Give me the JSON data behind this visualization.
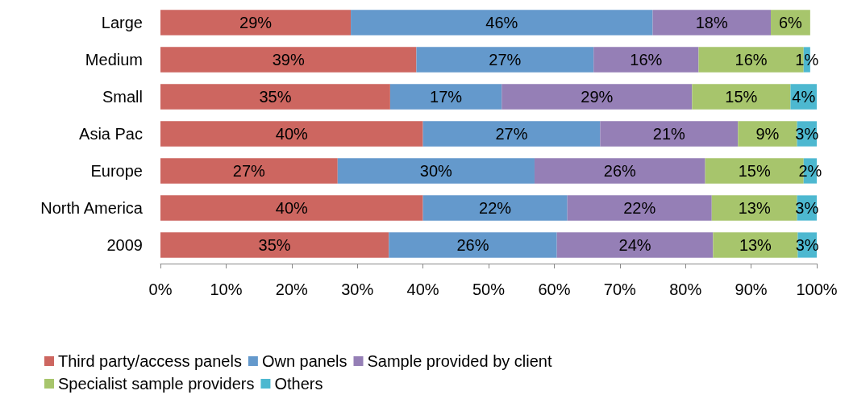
{
  "chart_data": {
    "type": "bar",
    "orientation": "horizontal",
    "stacked": true,
    "grid": false,
    "legend": "bottom left",
    "categories": [
      "Large",
      "Medium",
      "Small",
      "Asia Pac",
      "Europe",
      "North America",
      "2009"
    ],
    "xlim": [
      0,
      100
    ],
    "xticks": [
      {
        "value": 0,
        "label": "0%"
      },
      {
        "value": 10,
        "label": "10%"
      },
      {
        "value": 20,
        "label": "20%"
      },
      {
        "value": 30,
        "label": "30%"
      },
      {
        "value": 40,
        "label": "40%"
      },
      {
        "value": 50,
        "label": "50%"
      },
      {
        "value": 60,
        "label": "60%"
      },
      {
        "value": 70,
        "label": "70%"
      },
      {
        "value": 80,
        "label": "80%"
      },
      {
        "value": 90,
        "label": "90%"
      },
      {
        "value": 100,
        "label": "100%"
      }
    ],
    "series": [
      {
        "name": "Third party/access panels",
        "color": "#cd6660",
        "values": [
          29,
          39,
          35,
          40,
          27,
          40,
          34.8
        ],
        "value_labels": [
          "29%",
          "39%",
          "35%",
          "40%",
          "27%",
          "40%",
          "35%"
        ]
      },
      {
        "name": "Own panels",
        "color": "#6499cc",
        "values": [
          46,
          27,
          17,
          27,
          30,
          22,
          25.6
        ],
        "value_labels": [
          "46%",
          "27%",
          "17%",
          "27%",
          "30%",
          "22%",
          "26%"
        ]
      },
      {
        "name": "Sample provided by client",
        "color": "#957fb6",
        "values": [
          18,
          16,
          29,
          21,
          26,
          22,
          23.8
        ],
        "value_labels": [
          "18%",
          "16%",
          "29%",
          "21%",
          "26%",
          "22%",
          "24%"
        ]
      },
      {
        "name": "Specialist sample providers",
        "color": "#a7c56c",
        "values": [
          6,
          16,
          15,
          9,
          15,
          13,
          12.9
        ],
        "value_labels": [
          "6%",
          "16%",
          "15%",
          "9%",
          "15%",
          "13%",
          "13%"
        ]
      },
      {
        "name": "Others",
        "color": "#4db8d0",
        "values": [
          null,
          1,
          4,
          3,
          2,
          3,
          2.9
        ],
        "value_labels": [
          null,
          "1%",
          "4%",
          "3%",
          "2%",
          "3%",
          "3%"
        ]
      }
    ]
  }
}
